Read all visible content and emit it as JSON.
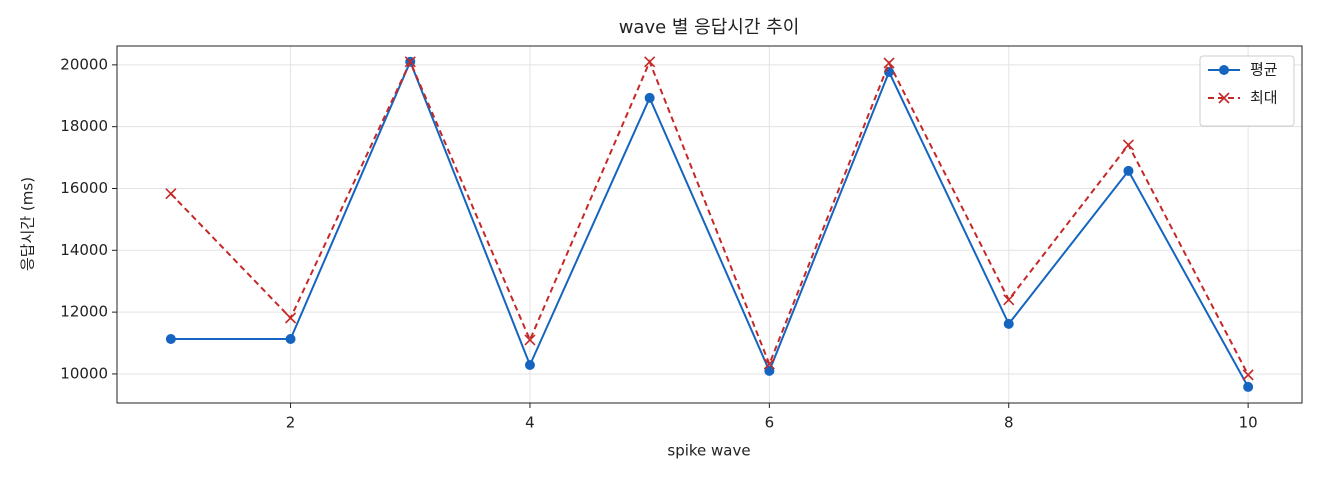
{
  "chart_data": {
    "type": "line",
    "title": "wave 별 응답시간 추이",
    "xlabel": "spike wave",
    "ylabel": "응답시간 (ms)",
    "x": [
      1,
      2,
      3,
      4,
      5,
      6,
      7,
      8,
      9,
      10
    ],
    "series": [
      {
        "name": "평균",
        "color": "#1565c0",
        "marker": "o",
        "linestyle": "solid",
        "values": [
          11130,
          11130,
          20100,
          10290,
          18930,
          10100,
          19770,
          11620,
          16570,
          9580
        ]
      },
      {
        "name": "최대",
        "color": "#c62828",
        "marker": "x",
        "linestyle": "dashed",
        "values": [
          15830,
          11810,
          20100,
          11100,
          20100,
          10320,
          20060,
          12400,
          17410,
          9970
        ]
      }
    ],
    "xlim": [
      0.55,
      10.45
    ],
    "ylim": [
      9060,
      20610
    ],
    "xticks": [
      2,
      4,
      6,
      8,
      10
    ],
    "yticks": [
      10000,
      12000,
      14000,
      16000,
      18000,
      20000
    ],
    "grid": true,
    "legend": "upper right"
  }
}
